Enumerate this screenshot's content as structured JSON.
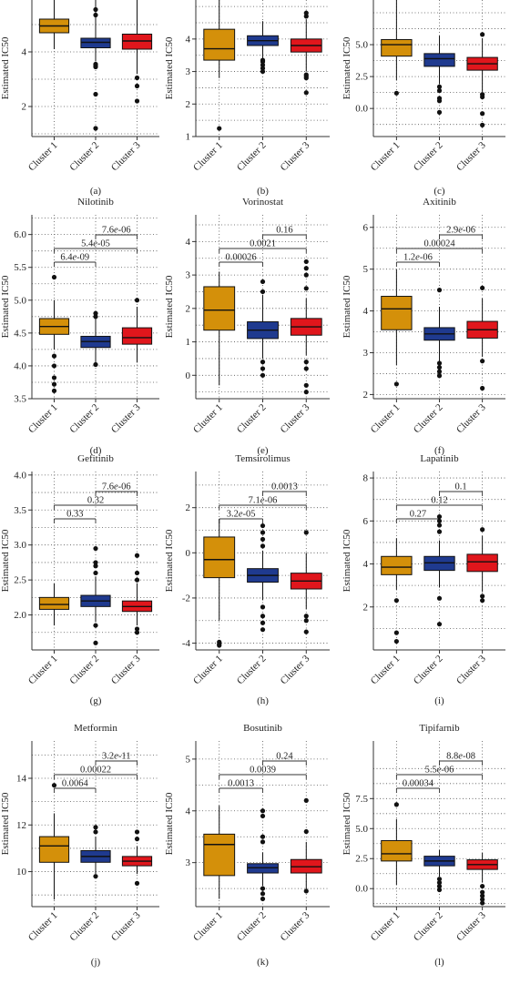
{
  "colors": {
    "cluster1": "#d4900a",
    "cluster2": "#1f3a8f",
    "cluster3": "#e0161c"
  },
  "chart_data": [
    {
      "type": "box",
      "caption": "(a)",
      "title": "",
      "ylabel": "Estimated IC50",
      "categories": [
        "Cluster 1",
        "Cluster 2",
        "Cluster 3"
      ],
      "ylim": [
        0.9,
        5.9
      ],
      "yticks": [
        2,
        4
      ],
      "boxes": [
        {
          "q1": 4.7,
          "median": 4.95,
          "q3": 5.2,
          "low": 4.1,
          "high": 5.9,
          "outliers": []
        },
        {
          "q1": 4.15,
          "median": 4.35,
          "q3": 4.5,
          "low": 3.65,
          "high": 5.9,
          "outliers": [
            3.55,
            3.5,
            3.45,
            2.45,
            1.2,
            5.35,
            5.55
          ]
        },
        {
          "q1": 4.1,
          "median": 4.4,
          "q3": 4.65,
          "low": 3.2,
          "high": 5.9,
          "outliers": [
            3.05,
            2.75,
            2.2
          ]
        }
      ],
      "comparisons": []
    },
    {
      "type": "box",
      "caption": "(b)",
      "title": "",
      "ylabel": "Estimated IC50",
      "categories": [
        "Cluster 1",
        "Cluster 2",
        "Cluster 3"
      ],
      "ylim": [
        1,
        5.2
      ],
      "yticks": [
        1,
        2,
        3,
        4
      ],
      "boxes": [
        {
          "q1": 3.35,
          "median": 3.7,
          "q3": 4.3,
          "low": 2.8,
          "high": 5.2,
          "outliers": [
            1.25
          ]
        },
        {
          "q1": 3.8,
          "median": 3.95,
          "q3": 4.1,
          "low": 3.4,
          "high": 4.55,
          "outliers": [
            3.35,
            3.3,
            3.2,
            3.1,
            3.0
          ]
        },
        {
          "q1": 3.6,
          "median": 3.8,
          "q3": 4.0,
          "low": 3.0,
          "high": 4.6,
          "outliers": [
            2.9,
            2.85,
            2.8,
            2.35,
            4.7,
            4.8
          ]
        }
      ],
      "comparisons": []
    },
    {
      "type": "box",
      "caption": "(c)",
      "title": "",
      "ylabel": "Estimated IC50",
      "categories": [
        "Cluster 1",
        "Cluster 2",
        "Cluster 3"
      ],
      "ylim": [
        -2.2,
        8.5
      ],
      "yticks": [
        0.0,
        2.5,
        5.0
      ],
      "boxes": [
        {
          "q1": 4.1,
          "median": 5.0,
          "q3": 5.4,
          "low": 2.2,
          "high": 8.5,
          "outliers": [
            1.2
          ]
        },
        {
          "q1": 3.3,
          "median": 3.9,
          "q3": 4.3,
          "low": 1.9,
          "high": 5.7,
          "outliers": [
            1.7,
            1.4,
            0.8,
            0.6,
            -0.3
          ]
        },
        {
          "q1": 3.0,
          "median": 3.5,
          "q3": 4.0,
          "low": 1.3,
          "high": 5.5,
          "outliers": [
            1.1,
            0.9,
            -0.4,
            -1.3,
            5.8
          ]
        }
      ],
      "comparisons": []
    },
    {
      "type": "box",
      "caption": "(d)",
      "title": "Nilotinib",
      "ylabel": "Estimated IC50",
      "categories": [
        "Cluster 1",
        "Cluster 2",
        "Cluster 3"
      ],
      "ylim": [
        3.5,
        6.3
      ],
      "yticks": [
        3.5,
        4.0,
        4.5,
        5.0,
        5.5,
        6.0
      ],
      "boxes": [
        {
          "q1": 4.48,
          "median": 4.6,
          "q3": 4.72,
          "low": 4.25,
          "high": 5.0,
          "outliers": [
            5.35,
            4.15,
            4.0,
            3.82,
            3.72,
            3.62
          ]
        },
        {
          "q1": 4.28,
          "median": 4.37,
          "q3": 4.45,
          "low": 4.05,
          "high": 4.72,
          "outliers": [
            4.8,
            4.75,
            4.02
          ]
        },
        {
          "q1": 4.33,
          "median": 4.43,
          "q3": 4.58,
          "low": 4.05,
          "high": 4.9,
          "outliers": [
            5.0
          ]
        }
      ],
      "comparisons": [
        {
          "from": 0,
          "to": 1,
          "label": "6.4e-09",
          "level": 0
        },
        {
          "from": 0,
          "to": 2,
          "label": "5.4e-05",
          "level": 1
        },
        {
          "from": 1,
          "to": 2,
          "label": "7.6e-06",
          "level": 2
        }
      ]
    },
    {
      "type": "box",
      "caption": "(e)",
      "title": "Vorinostat",
      "ylabel": "Estimated IC50",
      "categories": [
        "Cluster 1",
        "Cluster 2",
        "Cluster 3"
      ],
      "ylim": [
        -0.7,
        4.8
      ],
      "yticks": [
        0,
        1,
        2,
        3,
        4
      ],
      "boxes": [
        {
          "q1": 1.35,
          "median": 1.95,
          "q3": 2.65,
          "low": -0.3,
          "high": 3.1,
          "outliers": []
        },
        {
          "q1": 1.1,
          "median": 1.35,
          "q3": 1.6,
          "low": 0.5,
          "high": 2.4,
          "outliers": [
            2.8,
            2.5,
            0.4,
            0.2,
            0.0
          ]
        },
        {
          "q1": 1.2,
          "median": 1.45,
          "q3": 1.7,
          "low": 0.6,
          "high": 2.3,
          "outliers": [
            3.4,
            3.2,
            3.0,
            2.6,
            0.4,
            0.2,
            -0.3,
            -0.5
          ]
        }
      ],
      "comparisons": [
        {
          "from": 0,
          "to": 1,
          "label": "0.00026",
          "level": 0
        },
        {
          "from": 0,
          "to": 2,
          "label": "0.0021",
          "level": 1
        },
        {
          "from": 1,
          "to": 2,
          "label": "0.16",
          "level": 2
        }
      ]
    },
    {
      "type": "box",
      "caption": "(f)",
      "title": "Axitinib",
      "ylabel": "Estimated IC50",
      "categories": [
        "Cluster 1",
        "Cluster 2",
        "Cluster 3"
      ],
      "ylim": [
        1.9,
        6.3
      ],
      "yticks": [
        2,
        3,
        4,
        5,
        6
      ],
      "boxes": [
        {
          "q1": 3.55,
          "median": 4.05,
          "q3": 4.35,
          "low": 2.7,
          "high": 5.0,
          "outliers": [
            2.25
          ]
        },
        {
          "q1": 3.3,
          "median": 3.45,
          "q3": 3.6,
          "low": 2.8,
          "high": 4.1,
          "outliers": [
            4.5,
            2.75,
            2.65,
            2.55,
            2.45
          ]
        },
        {
          "q1": 3.35,
          "median": 3.55,
          "q3": 3.75,
          "low": 2.9,
          "high": 4.3,
          "outliers": [
            4.55,
            2.8,
            2.15
          ]
        }
      ],
      "comparisons": [
        {
          "from": 0,
          "to": 1,
          "label": "1.2e-06",
          "level": 0
        },
        {
          "from": 0,
          "to": 2,
          "label": "0.00024",
          "level": 1
        },
        {
          "from": 1,
          "to": 2,
          "label": "2.9e-06",
          "level": 2
        }
      ]
    },
    {
      "type": "box",
      "caption": "(g)",
      "title": "Gefitinib",
      "ylabel": "Estimated IC50",
      "categories": [
        "Cluster 1",
        "Cluster 2",
        "Cluster 3"
      ],
      "ylim": [
        1.5,
        4.05
      ],
      "yticks": [
        2.0,
        2.5,
        3.0,
        3.5,
        4.0
      ],
      "boxes": [
        {
          "q1": 2.08,
          "median": 2.15,
          "q3": 2.25,
          "low": 1.85,
          "high": 2.45,
          "outliers": []
        },
        {
          "q1": 2.12,
          "median": 2.2,
          "q3": 2.28,
          "low": 1.9,
          "high": 2.55,
          "outliers": [
            2.95,
            2.75,
            2.7,
            2.6,
            1.85,
            1.6
          ]
        },
        {
          "q1": 2.05,
          "median": 2.12,
          "q3": 2.2,
          "low": 1.85,
          "high": 2.45,
          "outliers": [
            2.85,
            2.6,
            2.5,
            1.8,
            1.75
          ]
        }
      ],
      "comparisons": [
        {
          "from": 0,
          "to": 1,
          "label": "0.33",
          "level": 0
        },
        {
          "from": 0,
          "to": 2,
          "label": "0.32",
          "level": 1
        },
        {
          "from": 1,
          "to": 2,
          "label": "7.6e-06",
          "level": 2
        }
      ]
    },
    {
      "type": "box",
      "caption": "(h)",
      "title": "Temsirolimus",
      "ylabel": "Estimated IC50",
      "categories": [
        "Cluster 1",
        "Cluster 2",
        "Cluster 3"
      ],
      "ylim": [
        -4.3,
        3.6
      ],
      "yticks": [
        -4,
        -2,
        0,
        2
      ],
      "boxes": [
        {
          "q1": -1.1,
          "median": -0.3,
          "q3": 0.7,
          "low": -3.0,
          "high": 1.5,
          "outliers": [
            -3.95,
            -4.05,
            -4.1
          ]
        },
        {
          "q1": -1.3,
          "median": -1.0,
          "q3": -0.7,
          "low": -2.1,
          "high": 0.1,
          "outliers": [
            1.2,
            0.9,
            0.6,
            0.3,
            -2.4,
            -2.8,
            -3.1,
            -3.4
          ]
        },
        {
          "q1": -1.6,
          "median": -1.25,
          "q3": -0.9,
          "low": -2.5,
          "high": 0.0,
          "outliers": [
            0.9,
            -2.8,
            -3.0,
            -3.5
          ]
        }
      ],
      "comparisons": [
        {
          "from": 0,
          "to": 1,
          "label": "3.2e-05",
          "level": 0
        },
        {
          "from": 0,
          "to": 2,
          "label": "7.1e-06",
          "level": 1
        },
        {
          "from": 1,
          "to": 2,
          "label": "0.0013",
          "level": 2
        }
      ]
    },
    {
      "type": "box",
      "caption": "(i)",
      "title": "Lapatinib",
      "ylabel": "Estimated IC50",
      "categories": [
        "Cluster 1",
        "Cluster 2",
        "Cluster 3"
      ],
      "ylim": [
        0,
        8.3
      ],
      "yticks": [
        2,
        4,
        6,
        8
      ],
      "boxes": [
        {
          "q1": 3.5,
          "median": 3.85,
          "q3": 4.35,
          "low": 2.8,
          "high": 5.2,
          "outliers": [
            2.3,
            0.8,
            0.4
          ]
        },
        {
          "q1": 3.7,
          "median": 4.05,
          "q3": 4.35,
          "low": 2.9,
          "high": 5.1,
          "outliers": [
            6.2,
            6.0,
            5.8,
            5.5,
            2.4,
            1.2
          ]
        },
        {
          "q1": 3.65,
          "median": 4.1,
          "q3": 4.45,
          "low": 2.7,
          "high": 5.3,
          "outliers": [
            5.6,
            2.5,
            2.3
          ]
        }
      ],
      "comparisons": [
        {
          "from": 0,
          "to": 1,
          "label": "0.27",
          "level": 0
        },
        {
          "from": 0,
          "to": 2,
          "label": "0.12",
          "level": 1
        },
        {
          "from": 1,
          "to": 2,
          "label": "0.1",
          "level": 2
        }
      ]
    },
    {
      "type": "box",
      "caption": "(j)",
      "title": "Metformin",
      "ylabel": "Estimated IC50",
      "categories": [
        "Cluster 1",
        "Cluster 2",
        "Cluster 3"
      ],
      "ylim": [
        8.5,
        15.6
      ],
      "yticks": [
        10,
        12,
        14
      ],
      "boxes": [
        {
          "q1": 10.4,
          "median": 11.1,
          "q3": 11.5,
          "low": 8.8,
          "high": 12.5,
          "outliers": [
            13.7
          ]
        },
        {
          "q1": 10.4,
          "median": 10.65,
          "q3": 10.9,
          "low": 9.9,
          "high": 11.5,
          "outliers": [
            11.9,
            11.7,
            9.8
          ]
        },
        {
          "q1": 10.25,
          "median": 10.45,
          "q3": 10.65,
          "low": 9.9,
          "high": 11.1,
          "outliers": [
            11.7,
            11.4,
            9.5
          ]
        }
      ],
      "comparisons": [
        {
          "from": 0,
          "to": 1,
          "label": "0.0064",
          "level": 0
        },
        {
          "from": 0,
          "to": 2,
          "label": "0.00022",
          "level": 1
        },
        {
          "from": 1,
          "to": 2,
          "label": "3.2e-11",
          "level": 2
        }
      ]
    },
    {
      "type": "box",
      "caption": "(k)",
      "title": "Bosutinib",
      "ylabel": "Estimated IC50",
      "categories": [
        "Cluster 1",
        "Cluster 2",
        "Cluster 3"
      ],
      "ylim": [
        2.15,
        5.35
      ],
      "yticks": [
        3,
        4,
        5
      ],
      "boxes": [
        {
          "q1": 2.75,
          "median": 3.35,
          "q3": 3.55,
          "low": 2.3,
          "high": 4.1,
          "outliers": []
        },
        {
          "q1": 2.8,
          "median": 2.9,
          "q3": 2.98,
          "low": 2.55,
          "high": 3.2,
          "outliers": [
            4.0,
            3.9,
            3.5,
            3.4,
            2.5,
            2.4,
            2.3
          ]
        },
        {
          "q1": 2.8,
          "median": 2.92,
          "q3": 3.06,
          "low": 2.45,
          "high": 3.4,
          "outliers": [
            4.2,
            3.6,
            2.45
          ]
        }
      ],
      "comparisons": [
        {
          "from": 0,
          "to": 1,
          "label": "0.0013",
          "level": 0
        },
        {
          "from": 0,
          "to": 2,
          "label": "0.0039",
          "level": 1
        },
        {
          "from": 1,
          "to": 2,
          "label": "0.24",
          "level": 2
        }
      ]
    },
    {
      "type": "box",
      "caption": "(l)",
      "title": "Tipifarnib",
      "ylabel": "Estimated IC50",
      "categories": [
        "Cluster 1",
        "Cluster 2",
        "Cluster 3"
      ],
      "ylim": [
        -1.5,
        12.3
      ],
      "yticks": [
        0.0,
        2.5,
        5.0,
        7.5
      ],
      "boxes": [
        {
          "q1": 2.3,
          "median": 2.9,
          "q3": 4.0,
          "low": 0.3,
          "high": 5.8,
          "outliers": [
            7.0
          ]
        },
        {
          "q1": 1.9,
          "median": 2.3,
          "q3": 2.7,
          "low": 1.0,
          "high": 3.2,
          "outliers": [
            0.8,
            0.5,
            0.2,
            -0.1
          ]
        },
        {
          "q1": 1.6,
          "median": 2.0,
          "q3": 2.4,
          "low": 0.5,
          "high": 3.0,
          "outliers": [
            0.2,
            -0.3,
            -0.6,
            -0.9,
            -1.2
          ]
        }
      ],
      "comparisons": [
        {
          "from": 0,
          "to": 1,
          "label": "0.00034",
          "level": 0
        },
        {
          "from": 0,
          "to": 2,
          "label": "5.5e-06",
          "level": 1
        },
        {
          "from": 1,
          "to": 2,
          "label": "8.8e-08",
          "level": 2
        }
      ]
    }
  ]
}
